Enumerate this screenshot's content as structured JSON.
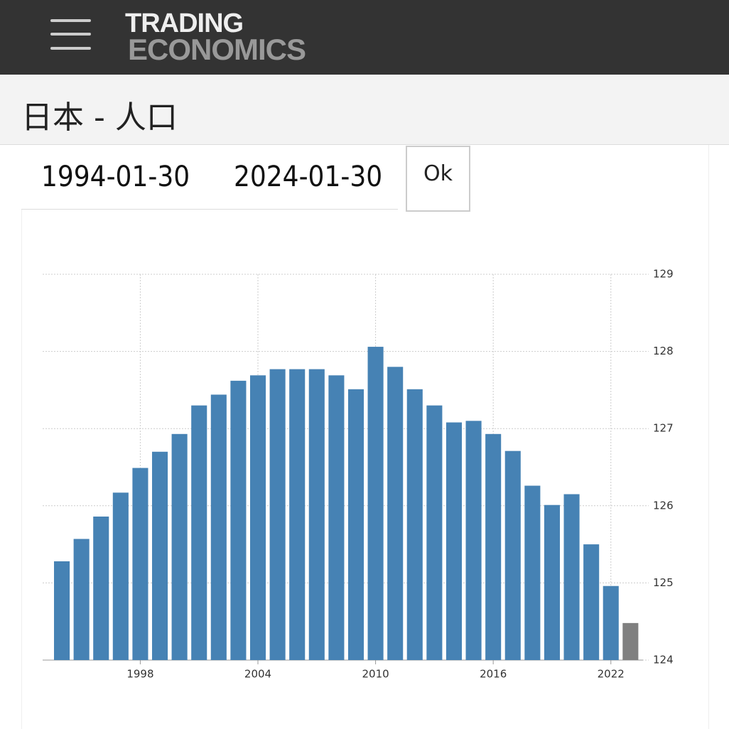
{
  "header": {
    "logo_top": "TRADING",
    "logo_bottom": "ECONOMICS"
  },
  "page_title": "日本 - 人口",
  "date_range": {
    "start": "1994-01-30",
    "end": "2024-01-30",
    "button": "Ok"
  },
  "chart_data": {
    "type": "bar",
    "x": [
      1994,
      1995,
      1996,
      1997,
      1998,
      1999,
      2000,
      2001,
      2002,
      2003,
      2004,
      2005,
      2006,
      2007,
      2008,
      2009,
      2010,
      2011,
      2012,
      2013,
      2014,
      2015,
      2016,
      2017,
      2018,
      2019,
      2020,
      2021,
      2022,
      2023
    ],
    "values": [
      125.28,
      125.57,
      125.86,
      126.17,
      126.49,
      126.7,
      126.93,
      127.3,
      127.44,
      127.62,
      127.69,
      127.77,
      127.77,
      127.77,
      127.69,
      127.51,
      128.06,
      127.8,
      127.51,
      127.3,
      127.08,
      127.1,
      126.93,
      126.71,
      126.26,
      126.01,
      126.15,
      125.5,
      124.96,
      124.48
    ],
    "colors": [
      "#4682b4",
      "#4682b4",
      "#4682b4",
      "#4682b4",
      "#4682b4",
      "#4682b4",
      "#4682b4",
      "#4682b4",
      "#4682b4",
      "#4682b4",
      "#4682b4",
      "#4682b4",
      "#4682b4",
      "#4682b4",
      "#4682b4",
      "#4682b4",
      "#4682b4",
      "#4682b4",
      "#4682b4",
      "#4682b4",
      "#4682b4",
      "#4682b4",
      "#4682b4",
      "#4682b4",
      "#4682b4",
      "#4682b4",
      "#4682b4",
      "#4682b4",
      "#4682b4",
      "#808080"
    ],
    "xlim": [
      1993.02,
      2023.64
    ],
    "xticks": [
      1998,
      2004,
      2010,
      2016,
      2022
    ],
    "ylim": [
      124,
      129
    ],
    "yticks": [
      124,
      125,
      126,
      127,
      128,
      129
    ],
    "grid": true
  }
}
